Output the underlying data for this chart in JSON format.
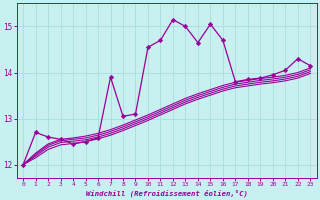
{
  "xlabel": "Windchill (Refroidissement éolien,°C)",
  "bg_color": "#c8f0f0",
  "line_color": "#990099",
  "grid_color": "#aadddd",
  "xlim": [
    -0.5,
    23.5
  ],
  "ylim": [
    11.7,
    15.5
  ],
  "yticks": [
    12,
    13,
    14,
    15
  ],
  "xticks": [
    0,
    1,
    2,
    3,
    4,
    5,
    6,
    7,
    8,
    9,
    10,
    11,
    12,
    13,
    14,
    15,
    16,
    17,
    18,
    19,
    20,
    21,
    22,
    23
  ],
  "main_x": [
    0,
    1,
    2,
    3,
    4,
    5,
    6,
    7,
    8,
    9,
    10,
    11,
    12,
    13,
    14,
    15,
    16,
    17,
    18,
    19,
    20,
    21,
    22,
    23
  ],
  "main_y": [
    12.0,
    12.7,
    12.6,
    12.55,
    12.45,
    12.5,
    12.58,
    13.9,
    13.05,
    13.1,
    14.55,
    14.7,
    15.15,
    15.0,
    14.65,
    15.05,
    14.7,
    13.8,
    13.85,
    13.88,
    13.95,
    14.05,
    14.3,
    14.15
  ],
  "trend1_x": [
    0,
    1,
    2,
    3,
    4,
    5,
    6,
    7,
    8,
    9,
    10,
    11,
    12,
    13,
    14,
    15,
    16,
    17,
    18,
    19,
    20,
    21,
    22,
    23
  ],
  "trend1_y": [
    12.0,
    12.25,
    12.45,
    12.55,
    12.58,
    12.62,
    12.68,
    12.76,
    12.86,
    12.97,
    13.08,
    13.2,
    13.32,
    13.44,
    13.54,
    13.63,
    13.72,
    13.79,
    13.83,
    13.87,
    13.9,
    13.94,
    14.0,
    14.1
  ],
  "trend2_x": [
    0,
    1,
    2,
    3,
    4,
    5,
    6,
    7,
    8,
    9,
    10,
    11,
    12,
    13,
    14,
    15,
    16,
    17,
    18,
    19,
    20,
    21,
    22,
    23
  ],
  "trend2_y": [
    12.0,
    12.22,
    12.42,
    12.52,
    12.55,
    12.58,
    12.64,
    12.72,
    12.82,
    12.93,
    13.04,
    13.16,
    13.28,
    13.4,
    13.5,
    13.59,
    13.68,
    13.75,
    13.79,
    13.83,
    13.86,
    13.9,
    13.96,
    14.06
  ],
  "trend3_x": [
    0,
    1,
    2,
    3,
    4,
    5,
    6,
    7,
    8,
    9,
    10,
    11,
    12,
    13,
    14,
    15,
    16,
    17,
    18,
    19,
    20,
    21,
    22,
    23
  ],
  "trend3_y": [
    12.0,
    12.19,
    12.38,
    12.48,
    12.51,
    12.54,
    12.6,
    12.68,
    12.78,
    12.89,
    13.0,
    13.12,
    13.24,
    13.36,
    13.46,
    13.55,
    13.64,
    13.71,
    13.75,
    13.79,
    13.82,
    13.86,
    13.92,
    14.02
  ],
  "trend4_x": [
    0,
    1,
    2,
    3,
    4,
    5,
    6,
    7,
    8,
    9,
    10,
    11,
    12,
    13,
    14,
    15,
    16,
    17,
    18,
    19,
    20,
    21,
    22,
    23
  ],
  "trend4_y": [
    12.0,
    12.15,
    12.33,
    12.43,
    12.46,
    12.5,
    12.56,
    12.64,
    12.74,
    12.85,
    12.96,
    13.08,
    13.2,
    13.32,
    13.42,
    13.51,
    13.6,
    13.67,
    13.71,
    13.75,
    13.78,
    13.82,
    13.88,
    13.98
  ]
}
